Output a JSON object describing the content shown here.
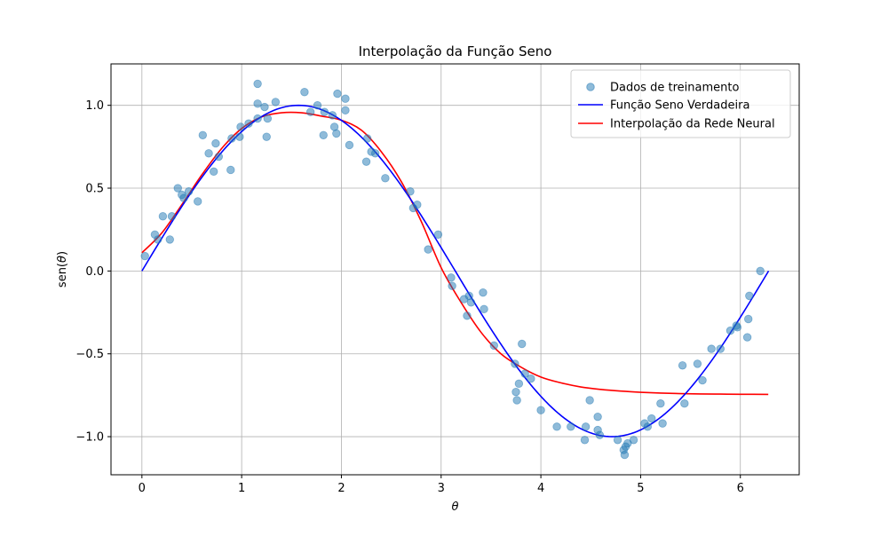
{
  "chart_data": {
    "type": "scatter",
    "title": "Interpolação da Função Seno",
    "xlabel": "θ",
    "ylabel_prefix": "sen(",
    "ylabel_var": "θ",
    "ylabel_suffix": ")",
    "xlim": [
      -0.31,
      6.59
    ],
    "ylim": [
      -1.23,
      1.25
    ],
    "xticks": [
      0,
      1,
      2,
      3,
      4,
      5,
      6
    ],
    "xtick_labels": [
      "0",
      "1",
      "2",
      "3",
      "4",
      "5",
      "6"
    ],
    "yticks": [
      -1.0,
      -0.5,
      0.0,
      0.5,
      1.0
    ],
    "ytick_labels": [
      "−1.0",
      "−0.5",
      "0.0",
      "0.5",
      "1.0"
    ],
    "grid": true,
    "legend_position": "top-right",
    "series": [
      {
        "name": "Dados de treinamento",
        "kind": "scatter",
        "color": "#1f77b4",
        "alpha": 0.5,
        "points": [
          [
            0.03,
            0.09
          ],
          [
            0.13,
            0.22
          ],
          [
            0.16,
            0.19
          ],
          [
            0.21,
            0.33
          ],
          [
            0.28,
            0.19
          ],
          [
            0.3,
            0.33
          ],
          [
            0.36,
            0.5
          ],
          [
            0.4,
            0.46
          ],
          [
            0.42,
            0.44
          ],
          [
            0.47,
            0.48
          ],
          [
            0.56,
            0.42
          ],
          [
            0.61,
            0.82
          ],
          [
            0.67,
            0.71
          ],
          [
            0.72,
            0.6
          ],
          [
            0.74,
            0.77
          ],
          [
            0.77,
            0.69
          ],
          [
            0.89,
            0.61
          ],
          [
            0.9,
            0.8
          ],
          [
            0.98,
            0.81
          ],
          [
            0.99,
            0.87
          ],
          [
            1.07,
            0.89
          ],
          [
            1.16,
            1.13
          ],
          [
            1.16,
            1.01
          ],
          [
            1.16,
            0.92
          ],
          [
            1.23,
            0.99
          ],
          [
            1.25,
            0.81
          ],
          [
            1.26,
            0.92
          ],
          [
            1.34,
            1.02
          ],
          [
            1.63,
            1.08
          ],
          [
            1.69,
            0.96
          ],
          [
            1.76,
            1.0
          ],
          [
            1.82,
            0.82
          ],
          [
            1.83,
            0.96
          ],
          [
            1.91,
            0.94
          ],
          [
            1.93,
            0.87
          ],
          [
            1.95,
            0.83
          ],
          [
            1.96,
            1.07
          ],
          [
            2.04,
            1.04
          ],
          [
            2.04,
            0.97
          ],
          [
            2.08,
            0.76
          ],
          [
            2.25,
            0.66
          ],
          [
            2.26,
            0.8
          ],
          [
            2.3,
            0.72
          ],
          [
            2.34,
            0.71
          ],
          [
            2.44,
            0.56
          ],
          [
            2.69,
            0.48
          ],
          [
            2.72,
            0.38
          ],
          [
            2.76,
            0.4
          ],
          [
            2.87,
            0.13
          ],
          [
            2.97,
            0.22
          ],
          [
            3.1,
            -0.04
          ],
          [
            3.11,
            -0.09
          ],
          [
            3.23,
            -0.17
          ],
          [
            3.26,
            -0.27
          ],
          [
            3.28,
            -0.15
          ],
          [
            3.3,
            -0.19
          ],
          [
            3.42,
            -0.13
          ],
          [
            3.43,
            -0.23
          ],
          [
            3.53,
            -0.45
          ],
          [
            3.74,
            -0.56
          ],
          [
            3.75,
            -0.73
          ],
          [
            3.76,
            -0.78
          ],
          [
            3.78,
            -0.68
          ],
          [
            3.81,
            -0.44
          ],
          [
            3.84,
            -0.62
          ],
          [
            3.9,
            -0.65
          ],
          [
            4.0,
            -0.84
          ],
          [
            4.16,
            -0.94
          ],
          [
            4.3,
            -0.94
          ],
          [
            4.44,
            -1.02
          ],
          [
            4.45,
            -0.94
          ],
          [
            4.49,
            -0.78
          ],
          [
            4.57,
            -0.88
          ],
          [
            4.57,
            -0.96
          ],
          [
            4.59,
            -0.99
          ],
          [
            4.77,
            -1.02
          ],
          [
            4.83,
            -1.08
          ],
          [
            4.84,
            -1.11
          ],
          [
            4.85,
            -1.06
          ],
          [
            4.87,
            -1.04
          ],
          [
            4.93,
            -1.02
          ],
          [
            5.04,
            -0.92
          ],
          [
            5.07,
            -0.94
          ],
          [
            5.11,
            -0.89
          ],
          [
            5.2,
            -0.8
          ],
          [
            5.22,
            -0.92
          ],
          [
            5.42,
            -0.57
          ],
          [
            5.44,
            -0.8
          ],
          [
            5.57,
            -0.56
          ],
          [
            5.62,
            -0.66
          ],
          [
            5.71,
            -0.47
          ],
          [
            5.8,
            -0.47
          ],
          [
            5.9,
            -0.36
          ],
          [
            5.96,
            -0.33
          ],
          [
            5.97,
            -0.34
          ],
          [
            6.07,
            -0.4
          ],
          [
            6.08,
            -0.29
          ],
          [
            6.09,
            -0.15
          ],
          [
            6.2,
            0.0
          ]
        ]
      },
      {
        "name": "Função Seno Verdadeira",
        "kind": "line",
        "color": "#0000ff",
        "function": "sin",
        "x_range": [
          0,
          6.283
        ]
      },
      {
        "name": "Interpolação da Rede Neural",
        "kind": "line",
        "color": "#ff0000",
        "points": [
          [
            0.0,
            0.11
          ],
          [
            0.2,
            0.23
          ],
          [
            0.4,
            0.4
          ],
          [
            0.6,
            0.58
          ],
          [
            0.8,
            0.74
          ],
          [
            1.0,
            0.86
          ],
          [
            1.2,
            0.93
          ],
          [
            1.4,
            0.955
          ],
          [
            1.6,
            0.955
          ],
          [
            1.8,
            0.935
          ],
          [
            2.0,
            0.91
          ],
          [
            2.2,
            0.85
          ],
          [
            2.4,
            0.72
          ],
          [
            2.6,
            0.54
          ],
          [
            2.8,
            0.3
          ],
          [
            3.0,
            0.02
          ],
          [
            3.2,
            -0.19
          ],
          [
            3.4,
            -0.37
          ],
          [
            3.6,
            -0.5
          ],
          [
            3.8,
            -0.58
          ],
          [
            4.0,
            -0.64
          ],
          [
            4.2,
            -0.675
          ],
          [
            4.4,
            -0.7
          ],
          [
            4.6,
            -0.715
          ],
          [
            4.8,
            -0.725
          ],
          [
            5.0,
            -0.732
          ],
          [
            5.2,
            -0.737
          ],
          [
            5.4,
            -0.74
          ],
          [
            5.6,
            -0.742
          ],
          [
            5.8,
            -0.743
          ],
          [
            6.0,
            -0.744
          ],
          [
            6.28,
            -0.745
          ]
        ]
      }
    ]
  }
}
